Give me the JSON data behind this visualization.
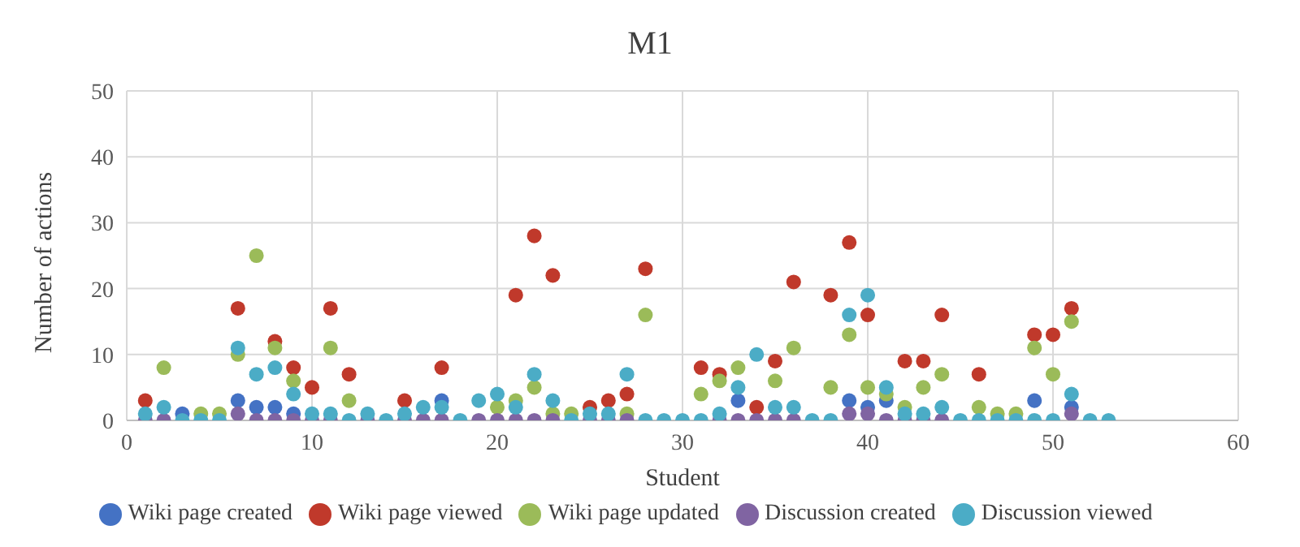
{
  "chart_data": {
    "type": "scatter",
    "title": "M1",
    "xlabel": "Student",
    "ylabel": "Number of actions",
    "x": [
      1,
      2,
      3,
      4,
      5,
      6,
      7,
      8,
      9,
      10,
      11,
      12,
      13,
      14,
      15,
      16,
      17,
      18,
      19,
      20,
      21,
      22,
      23,
      24,
      25,
      26,
      27,
      28,
      29,
      30,
      31,
      32,
      33,
      34,
      35,
      36,
      37,
      38,
      39,
      40,
      41,
      42,
      43,
      44,
      45,
      46,
      47,
      48,
      49,
      50,
      51,
      52,
      53
    ],
    "series": [
      {
        "name": "Wiki page created",
        "color": "#4472c4",
        "values": [
          null,
          null,
          1,
          null,
          null,
          3,
          2,
          2,
          1,
          null,
          null,
          null,
          null,
          null,
          null,
          null,
          3,
          null,
          null,
          null,
          null,
          null,
          null,
          null,
          null,
          null,
          null,
          null,
          null,
          null,
          null,
          null,
          3,
          null,
          null,
          null,
          null,
          null,
          3,
          2,
          3,
          null,
          null,
          null,
          null,
          null,
          null,
          null,
          3,
          null,
          2,
          null,
          null
        ]
      },
      {
        "name": "Wiki page viewed",
        "color": "#c0392b",
        "values": [
          3,
          null,
          null,
          null,
          null,
          17,
          null,
          12,
          8,
          5,
          17,
          7,
          null,
          null,
          3,
          null,
          8,
          null,
          null,
          null,
          19,
          28,
          22,
          null,
          2,
          3,
          4,
          23,
          null,
          null,
          8,
          7,
          null,
          2,
          9,
          21,
          null,
          19,
          27,
          16,
          null,
          9,
          9,
          16,
          null,
          7,
          null,
          null,
          13,
          13,
          17,
          null,
          null
        ]
      },
      {
        "name": "Wiki page updated",
        "color": "#9bbb59",
        "values": [
          null,
          8,
          null,
          1,
          1,
          10,
          25,
          11,
          6,
          null,
          11,
          3,
          null,
          null,
          null,
          null,
          null,
          null,
          null,
          2,
          3,
          5,
          1,
          1,
          null,
          null,
          1,
          16,
          null,
          null,
          4,
          6,
          8,
          null,
          6,
          11,
          null,
          5,
          13,
          5,
          4,
          2,
          5,
          7,
          null,
          2,
          1,
          1,
          11,
          7,
          15,
          null,
          null
        ]
      },
      {
        "name": "Discussion created",
        "color": "#8064a2",
        "values": [
          0,
          0,
          null,
          null,
          null,
          1,
          0,
          0,
          0,
          0,
          0,
          null,
          0,
          null,
          0,
          0,
          0,
          null,
          0,
          0,
          0,
          0,
          0,
          null,
          0,
          0,
          0,
          null,
          null,
          null,
          null,
          0,
          0,
          0,
          0,
          0,
          null,
          null,
          1,
          1,
          0,
          0,
          0,
          0,
          null,
          null,
          null,
          null,
          null,
          null,
          1,
          null,
          null
        ]
      },
      {
        "name": "Discussion viewed",
        "color": "#4bacc6",
        "values": [
          1,
          2,
          0,
          0,
          0,
          11,
          7,
          8,
          4,
          1,
          1,
          0,
          1,
          0,
          1,
          2,
          2,
          0,
          3,
          4,
          2,
          7,
          3,
          0,
          1,
          1,
          7,
          0,
          0,
          0,
          0,
          1,
          5,
          10,
          2,
          2,
          0,
          0,
          16,
          19,
          5,
          1,
          1,
          2,
          0,
          0,
          0,
          0,
          0,
          0,
          4,
          0,
          0
        ]
      }
    ],
    "xlim": [
      0,
      60
    ],
    "xticks": [
      0,
      10,
      20,
      30,
      40,
      50,
      60
    ],
    "ylim": [
      0,
      50
    ],
    "yticks": [
      0,
      10,
      20,
      30,
      40,
      50
    ],
    "grid": true,
    "legend": "bottom",
    "marker": "circle"
  }
}
